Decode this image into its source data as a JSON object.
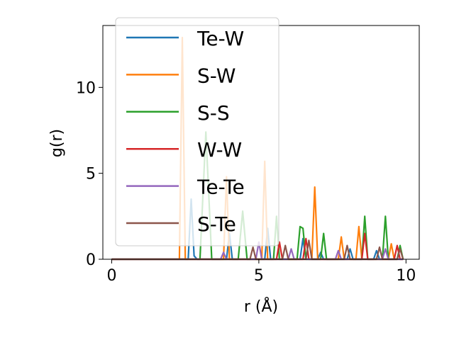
{
  "chart_data": {
    "type": "line",
    "xlabel": "r (Å)",
    "ylabel": "g(r)",
    "xlim": [
      -0.3,
      10.45
    ],
    "ylim": [
      0,
      13.6
    ],
    "xticks": [
      0,
      5,
      10
    ],
    "yticks": [
      0,
      5,
      10
    ],
    "grid": false,
    "legend_position": "upper-left",
    "series": [
      {
        "name": "Te-W",
        "color": "#1f77b4",
        "x": [
          0,
          2.6,
          2.7,
          2.8,
          2.9,
          3.9,
          4.0,
          4.1,
          5.2,
          5.3,
          5.4,
          6.4,
          6.5,
          6.6,
          7.0,
          7.1,
          7.2,
          8.0,
          8.1,
          8.2,
          8.9,
          9.0,
          9.1,
          9.9
        ],
        "values": [
          0,
          0,
          3.5,
          0.2,
          0,
          0,
          1.5,
          0,
          0,
          1.8,
          0,
          0,
          1.2,
          0,
          0,
          0.4,
          0,
          0,
          0.6,
          0,
          0,
          0.5,
          0,
          0
        ]
      },
      {
        "name": "S-W",
        "color": "#ff7f0e",
        "x": [
          0,
          2.3,
          2.4,
          2.5,
          3.8,
          3.9,
          4.0,
          5.1,
          5.2,
          5.3,
          6.8,
          6.9,
          7.0,
          7.7,
          7.8,
          7.9,
          8.3,
          8.4,
          8.5,
          9.4,
          9.5,
          9.6,
          9.9
        ],
        "values": [
          0,
          0,
          12.9,
          0,
          0,
          4.8,
          0,
          0,
          5.7,
          0,
          0,
          4.2,
          0,
          0,
          1.3,
          0,
          0,
          1.9,
          0,
          0,
          0.9,
          0,
          0
        ]
      },
      {
        "name": "S-S",
        "color": "#2ca02c",
        "x": [
          0,
          3.0,
          3.2,
          3.4,
          4.3,
          4.45,
          4.6,
          5.5,
          5.6,
          5.7,
          6.3,
          6.4,
          6.5,
          6.6,
          7.1,
          7.2,
          7.3,
          8.5,
          8.6,
          8.7,
          9.2,
          9.3,
          9.4,
          9.7,
          9.8,
          9.9
        ],
        "values": [
          0,
          0,
          7.4,
          0,
          0,
          2.8,
          0,
          0,
          2.5,
          0,
          0,
          1.9,
          1.8,
          0,
          0,
          1.5,
          0,
          0,
          2.5,
          0,
          0,
          2.5,
          0,
          0,
          0.8,
          0
        ]
      },
      {
        "name": "W-W",
        "color": "#d62728",
        "x": [
          0,
          5.6,
          5.7,
          5.8,
          6.5,
          6.6,
          6.7,
          8.5,
          8.6,
          8.7,
          9.6,
          9.7,
          9.8,
          9.9
        ],
        "values": [
          0,
          0,
          1.0,
          0,
          0,
          1.2,
          0,
          0,
          1.5,
          0,
          0,
          0.8,
          0,
          0
        ]
      },
      {
        "name": "Te-Te",
        "color": "#9467bd",
        "x": [
          0,
          3.7,
          3.8,
          3.9,
          4.9,
          5.0,
          5.1,
          6.0,
          6.1,
          6.2,
          7.6,
          7.7,
          7.8,
          9.2,
          9.3,
          9.4,
          9.9
        ],
        "values": [
          0,
          0,
          0.4,
          0,
          0,
          1.0,
          0,
          0,
          0.6,
          0,
          0,
          0.5,
          0,
          0,
          0.6,
          0,
          0
        ]
      },
      {
        "name": "S-Te",
        "color": "#8c564b",
        "x": [
          0,
          4.7,
          4.8,
          4.9,
          5.8,
          5.9,
          6.0,
          6.6,
          6.7,
          6.8,
          7.9,
          8.0,
          8.1,
          9.0,
          9.1,
          9.2,
          9.7,
          9.8,
          9.9
        ],
        "values": [
          0,
          0,
          0.7,
          0,
          0,
          0.8,
          0,
          0,
          1.1,
          0,
          0,
          0.8,
          0,
          0,
          0.7,
          0,
          0,
          0.6,
          0
        ]
      }
    ]
  }
}
